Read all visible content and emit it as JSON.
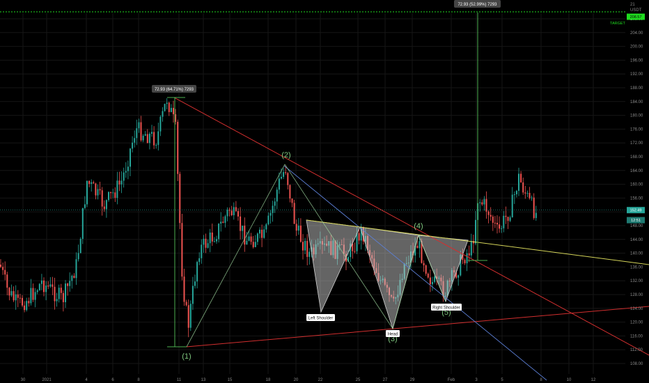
{
  "chart_data": {
    "type": "candlestick",
    "currency": "USDT",
    "price_scale_top": "21",
    "x_ticks": [
      "30",
      "2021",
      "4",
      "6",
      "8",
      "11",
      "13",
      "15",
      "18",
      "20",
      "22",
      "25",
      "27",
      "29",
      "Feb",
      "3",
      "5",
      "8",
      "10",
      "12"
    ],
    "y_ticks": [
      "208.00",
      "204.00",
      "200.00",
      "196.00",
      "192.00",
      "188.00",
      "184.00",
      "180.00",
      "176.00",
      "172.00",
      "168.00",
      "164.00",
      "160.00",
      "156.00",
      "152.00",
      "148.00",
      "144.00",
      "140.00",
      "136.00",
      "132.00",
      "128.00",
      "124.00",
      "120.00",
      "116.00",
      "112.00",
      "108.00"
    ],
    "ylim": [
      105,
      211
    ],
    "grid": true,
    "wave_labels": [
      "(1)",
      "(2)",
      "(3)",
      "(4)",
      "(5)"
    ],
    "wave_points": [
      {
        "label": "(1)",
        "x": 10.8,
        "y": 113
      },
      {
        "label": "(2)",
        "x": 19.3,
        "y": 165
      },
      {
        "label": "(3)",
        "x": 27.5,
        "y": 118.5
      },
      {
        "label": "(4)",
        "x": 30.3,
        "y": 146
      },
      {
        "label": "(5)",
        "x": 31.5,
        "y": 127
      }
    ],
    "pattern_labels": [
      "Left Shoulder",
      "Head",
      "Right Shoulder"
    ],
    "measure_labels": [
      "72.93 (64.71%) 7293",
      "72.93 (52.99%) 7293"
    ],
    "target_label": "TARGET",
    "target_price": "208.57",
    "target_level": 208.6,
    "current_price": "152.49",
    "current_price_level": 152.5,
    "secondary_badge": "12:51",
    "secondary_level": 150.2,
    "colors": {
      "up": "#26a69a",
      "down": "#ef5350",
      "trendline_red": "#d32f2f",
      "trendline_blue": "#5c7fd6",
      "neckline_yellow": "#d6d65a",
      "measure_green": "#4caf50",
      "wave_green": "#7fc87f",
      "target_green": "#1fdc1f",
      "pattern_fill": "#c8c8c8"
    }
  }
}
